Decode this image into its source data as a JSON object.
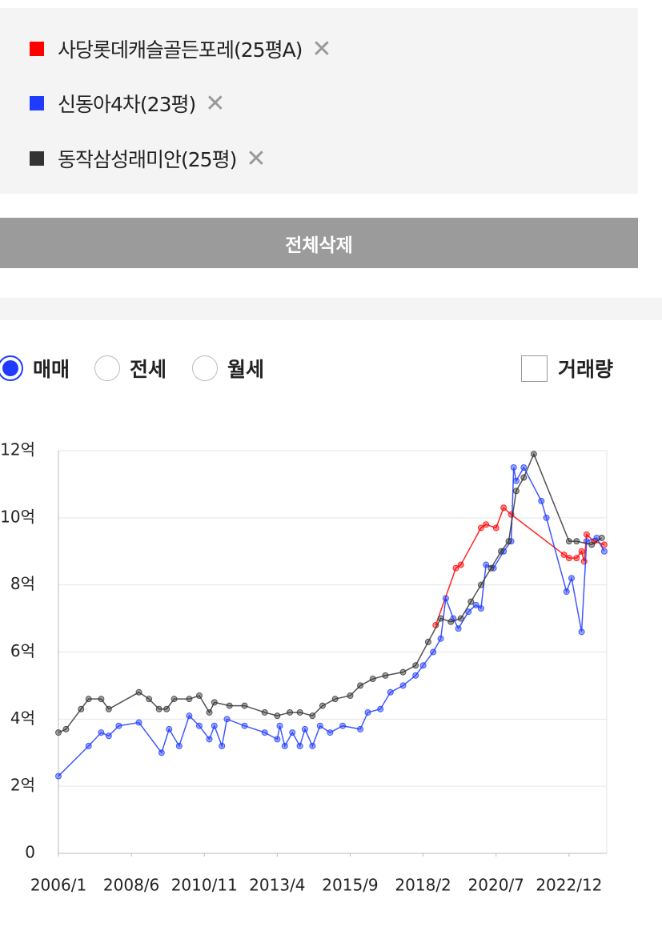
{
  "clear_all_button": "전체삭제",
  "price_types": [
    {
      "label": "매매",
      "checked": true
    },
    {
      "label": "전세",
      "checked": false
    },
    {
      "label": "월세",
      "checked": false
    }
  ],
  "volume_checkbox": {
    "label": "거래량",
    "checked": false
  },
  "chart_data": {
    "type": "line",
    "xlim": [
      "2006/1",
      "2024/3"
    ],
    "xticks": [
      "2006/1",
      "2008/6",
      "2010/11",
      "2013/4",
      "2015/9",
      "2018/2",
      "2020/7",
      "2022/12"
    ],
    "ylim": [
      0,
      12
    ],
    "yticks": [
      0,
      {
        "value": 2,
        "label": "2억"
      },
      {
        "value": 4,
        "label": "4억"
      },
      {
        "value": 6,
        "label": "6억"
      },
      {
        "value": 8,
        "label": "8억"
      },
      {
        "value": 10,
        "label": "10억"
      },
      {
        "value": 12,
        "label": "12억"
      }
    ],
    "grid": true,
    "series": [
      {
        "name": "사당롯데캐슬골든포레(25평A)",
        "color": "#ff0000",
        "x": [
          "2018/7",
          "2019/3",
          "2019/5",
          "2020/1",
          "2020/3",
          "2020/7",
          "2020/10",
          "2021/1",
          "2022/10",
          "2022/12",
          "2023/3",
          "2023/5",
          "2023/6",
          "2023/7",
          "2023/10",
          "2024/2"
        ],
        "values": [
          6.8,
          8.5,
          8.6,
          9.7,
          9.8,
          9.7,
          10.3,
          10.1,
          8.9,
          8.8,
          8.8,
          9.0,
          8.7,
          9.5,
          9.3,
          9.2
        ]
      },
      {
        "name": "신동아4차(23평)",
        "color": "#1f3bff",
        "x": [
          "2006/1",
          "2007/1",
          "2007/6",
          "2007/9",
          "2008/1",
          "2008/9",
          "2009/6",
          "2009/9",
          "2010/1",
          "2010/5",
          "2010/9",
          "2011/1",
          "2011/3",
          "2011/6",
          "2011/8",
          "2012/3",
          "2012/11",
          "2013/4",
          "2013/5",
          "2013/7",
          "2013/10",
          "2014/1",
          "2014/3",
          "2014/6",
          "2014/9",
          "2015/1",
          "2015/6",
          "2016/1",
          "2016/4",
          "2016/9",
          "2017/1",
          "2017/6",
          "2017/11",
          "2018/2",
          "2018/6",
          "2018/9",
          "2018/11",
          "2019/2",
          "2019/4",
          "2019/8",
          "2019/11",
          "2020/1",
          "2020/3",
          "2020/6",
          "2020/10",
          "2021/1",
          "2021/2",
          "2021/3",
          "2021/6",
          "2022/1",
          "2022/3",
          "2022/11",
          "2023/1",
          "2023/5",
          "2023/7",
          "2023/11",
          "2024/2"
        ],
        "values": [
          2.3,
          3.2,
          3.6,
          3.5,
          3.8,
          3.9,
          3.0,
          3.7,
          3.2,
          4.1,
          3.8,
          3.4,
          3.8,
          3.2,
          4.0,
          3.8,
          3.6,
          3.4,
          3.8,
          3.2,
          3.6,
          3.2,
          3.7,
          3.2,
          3.8,
          3.6,
          3.8,
          3.7,
          4.2,
          4.3,
          4.8,
          5.0,
          5.3,
          5.6,
          6.0,
          6.4,
          7.6,
          7.0,
          6.7,
          7.2,
          7.4,
          7.3,
          8.6,
          8.5,
          9.0,
          9.3,
          11.5,
          11.1,
          11.5,
          10.5,
          10.0,
          7.8,
          8.2,
          6.6,
          9.3,
          9.4,
          9.0
        ]
      },
      {
        "name": "동작삼성래미안(25평)",
        "color": "#333333",
        "x": [
          "2006/1",
          "2006/4",
          "2006/10",
          "2007/1",
          "2007/6",
          "2007/9",
          "2008/9",
          "2009/1",
          "2009/5",
          "2009/8",
          "2009/11",
          "2010/5",
          "2010/9",
          "2011/1",
          "2011/3",
          "2011/9",
          "2012/3",
          "2012/11",
          "2013/4",
          "2013/9",
          "2014/1",
          "2014/6",
          "2014/10",
          "2015/3",
          "2015/9",
          "2016/1",
          "2016/6",
          "2016/11",
          "2017/6",
          "2017/11",
          "2018/4",
          "2018/9",
          "2019/1",
          "2019/5",
          "2019/9",
          "2020/1",
          "2020/5",
          "2020/9",
          "2020/12",
          "2021/3",
          "2021/6",
          "2021/10",
          "2022/12",
          "2023/3",
          "2023/9",
          "2024/1"
        ],
        "values": [
          3.6,
          3.7,
          4.3,
          4.6,
          4.6,
          4.3,
          4.8,
          4.6,
          4.3,
          4.3,
          4.6,
          4.6,
          4.7,
          4.2,
          4.5,
          4.4,
          4.4,
          4.2,
          4.1,
          4.2,
          4.2,
          4.1,
          4.4,
          4.6,
          4.7,
          5.0,
          5.2,
          5.3,
          5.4,
          5.6,
          6.3,
          7.0,
          6.9,
          7.0,
          7.5,
          8.0,
          8.5,
          9.0,
          9.3,
          10.8,
          11.2,
          11.9,
          9.3,
          9.3,
          9.2,
          9.4
        ]
      }
    ]
  }
}
